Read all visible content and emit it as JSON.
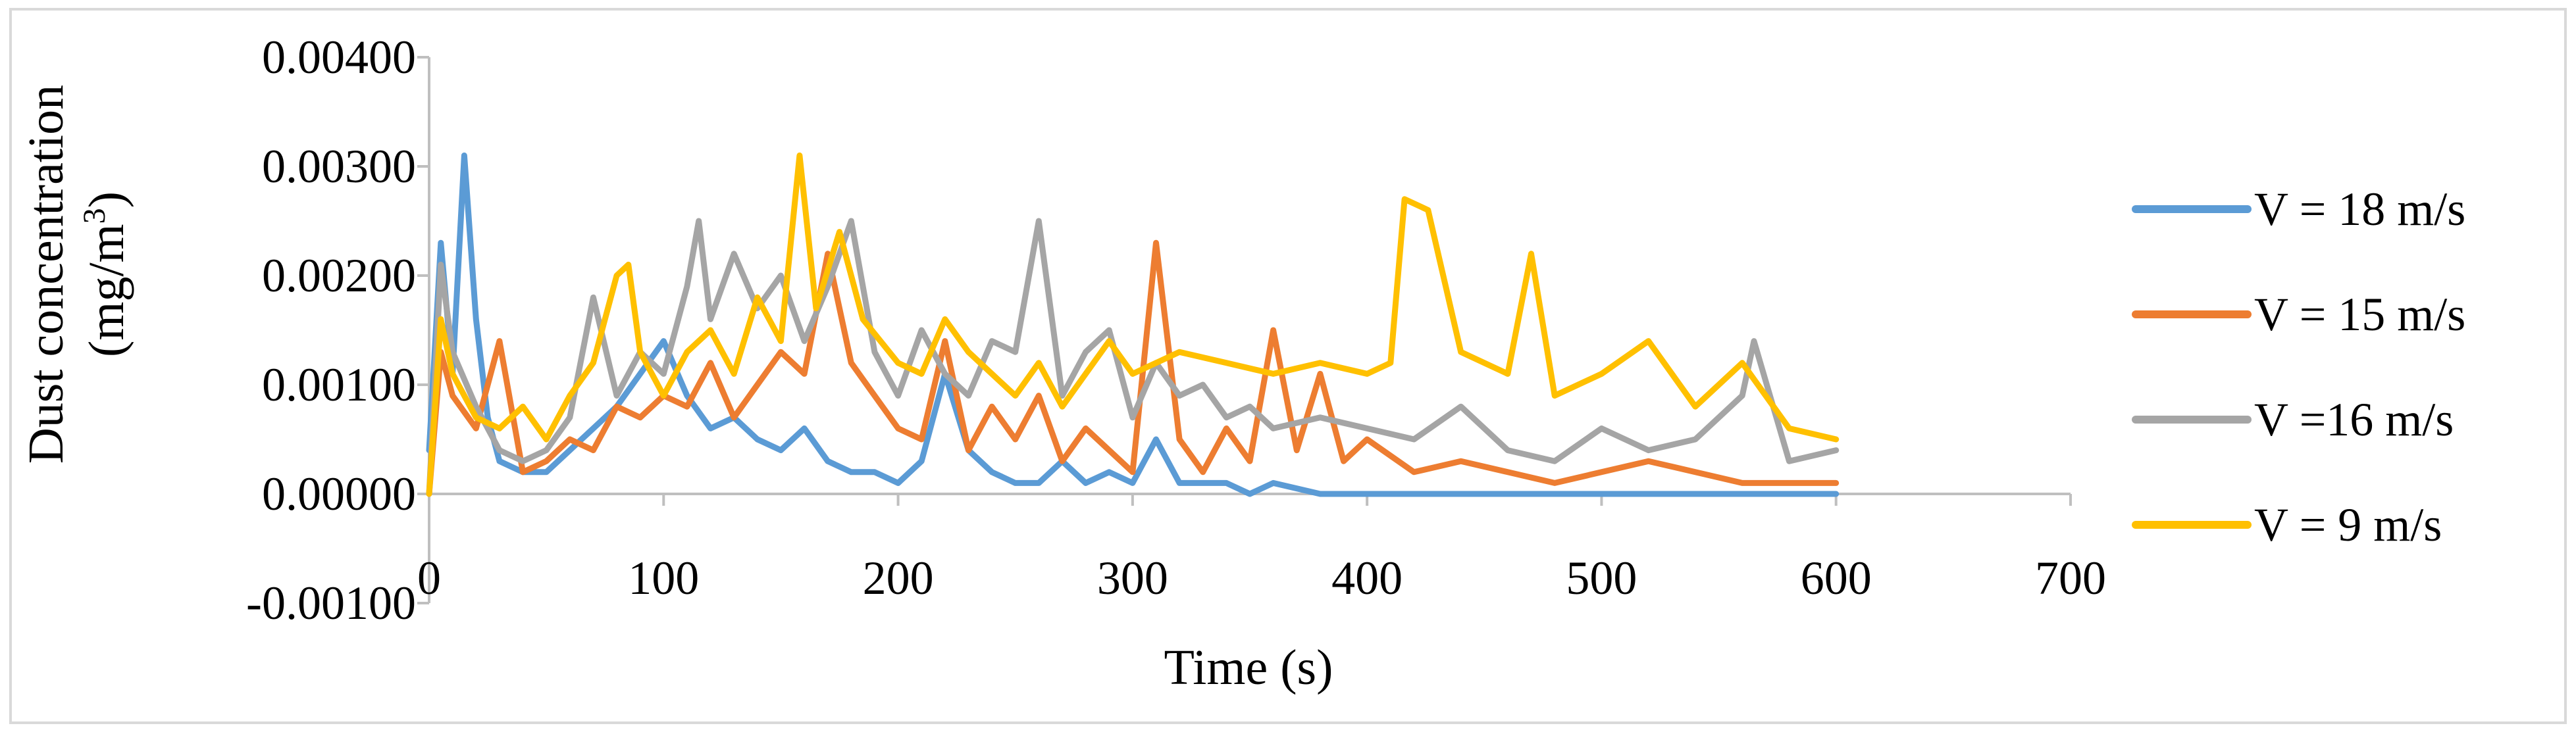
{
  "chart_data": {
    "type": "line",
    "title": "",
    "xlabel": "Time (s)",
    "ylabel": {
      "line1": "Dust concentration",
      "line2_prefix": "(mg/m",
      "line2_superscript": "3",
      "line2_suffix": ")"
    },
    "xlim": [
      0,
      700
    ],
    "ylim": [
      -0.001,
      0.004
    ],
    "x_ticks": [
      0,
      100,
      200,
      300,
      400,
      500,
      600,
      700
    ],
    "x_tick_labels": [
      "0",
      "100",
      "200",
      "300",
      "400",
      "500",
      "600",
      "700"
    ],
    "y_ticks": [
      -0.001,
      0,
      0.001,
      0.002,
      0.003,
      0.004
    ],
    "y_tick_labels": [
      "-0.00100",
      "0.00000",
      "0.00100",
      "0.00200",
      "0.00300",
      "0.00400"
    ],
    "grid": false,
    "legend_position": "right",
    "series": [
      {
        "name": "V = 18 m/s",
        "color": "#5B9BD5",
        "x": [
          0,
          5,
          10,
          15,
          20,
          25,
          30,
          40,
          50,
          60,
          70,
          80,
          90,
          100,
          110,
          120,
          130,
          140,
          150,
          160,
          170,
          180,
          190,
          200,
          210,
          220,
          230,
          240,
          250,
          260,
          270,
          280,
          290,
          300,
          310,
          320,
          330,
          340,
          350,
          360,
          380,
          400,
          420,
          440,
          460,
          480,
          500,
          520,
          540,
          560,
          580,
          600
        ],
        "y": [
          0.0004,
          0.0023,
          0.0011,
          0.0031,
          0.0016,
          0.0007,
          0.0003,
          0.0002,
          0.0002,
          0.0004,
          0.0006,
          0.0008,
          0.0011,
          0.0014,
          0.0009,
          0.0006,
          0.0007,
          0.0005,
          0.0004,
          0.0006,
          0.0003,
          0.0002,
          0.0002,
          0.0001,
          0.0003,
          0.0011,
          0.0004,
          0.0002,
          0.0001,
          0.0001,
          0.0003,
          0.0001,
          0.0002,
          0.0001,
          0.0005,
          0.0001,
          0.0001,
          0.0001,
          0.0,
          0.0001,
          0.0,
          0.0,
          0.0,
          0.0,
          0.0,
          0.0,
          0.0,
          0.0,
          0.0,
          0.0,
          0.0,
          0.0
        ]
      },
      {
        "name": "V = 15 m/s",
        "color": "#ED7D31",
        "x": [
          0,
          5,
          10,
          20,
          30,
          40,
          50,
          60,
          70,
          80,
          90,
          100,
          110,
          120,
          130,
          140,
          150,
          160,
          170,
          180,
          190,
          200,
          210,
          220,
          230,
          240,
          250,
          260,
          270,
          280,
          290,
          300,
          310,
          320,
          330,
          340,
          350,
          360,
          370,
          380,
          390,
          400,
          420,
          440,
          460,
          480,
          500,
          520,
          540,
          560,
          580,
          600
        ],
        "y": [
          0.0,
          0.0013,
          0.0009,
          0.0006,
          0.0014,
          0.0002,
          0.0003,
          0.0005,
          0.0004,
          0.0008,
          0.0007,
          0.0009,
          0.0008,
          0.0012,
          0.0007,
          0.001,
          0.0013,
          0.0011,
          0.0022,
          0.0012,
          0.0009,
          0.0006,
          0.0005,
          0.0014,
          0.0004,
          0.0008,
          0.0005,
          0.0009,
          0.0003,
          0.0006,
          0.0004,
          0.0002,
          0.0023,
          0.0005,
          0.0002,
          0.0006,
          0.0003,
          0.0015,
          0.0004,
          0.0011,
          0.0003,
          0.0005,
          0.0002,
          0.0003,
          0.0002,
          0.0001,
          0.0002,
          0.0003,
          0.0002,
          0.0001,
          0.0001,
          0.0001
        ]
      },
      {
        "name": "V =16 m/s",
        "color": "#A5A5A5",
        "x": [
          0,
          5,
          10,
          20,
          30,
          40,
          50,
          60,
          70,
          80,
          90,
          100,
          110,
          115,
          120,
          130,
          140,
          150,
          160,
          170,
          180,
          190,
          200,
          210,
          220,
          230,
          240,
          250,
          260,
          270,
          280,
          290,
          300,
          310,
          320,
          330,
          340,
          350,
          360,
          380,
          400,
          420,
          440,
          460,
          480,
          500,
          520,
          540,
          560,
          565,
          580,
          600
        ],
        "y": [
          0.0,
          0.0021,
          0.0013,
          0.0008,
          0.0004,
          0.0003,
          0.0004,
          0.0007,
          0.0018,
          0.0009,
          0.0013,
          0.0011,
          0.0019,
          0.0025,
          0.0016,
          0.0022,
          0.0017,
          0.002,
          0.0014,
          0.0019,
          0.0025,
          0.0013,
          0.0009,
          0.0015,
          0.0011,
          0.0009,
          0.0014,
          0.0013,
          0.0025,
          0.0009,
          0.0013,
          0.0015,
          0.0007,
          0.0012,
          0.0009,
          0.001,
          0.0007,
          0.0008,
          0.0006,
          0.0007,
          0.0006,
          0.0005,
          0.0008,
          0.0004,
          0.0003,
          0.0006,
          0.0004,
          0.0005,
          0.0009,
          0.0014,
          0.0003,
          0.0004
        ]
      },
      {
        "name": "V = 9 m/s",
        "color": "#FFC000",
        "x": [
          0,
          5,
          10,
          20,
          30,
          40,
          50,
          60,
          70,
          80,
          85,
          90,
          100,
          110,
          120,
          130,
          140,
          150,
          158,
          165,
          175,
          185,
          200,
          210,
          220,
          230,
          240,
          250,
          260,
          270,
          280,
          290,
          300,
          320,
          340,
          360,
          380,
          400,
          410,
          416,
          426,
          440,
          450,
          460,
          470,
          480,
          500,
          520,
          540,
          560,
          580,
          600
        ],
        "y": [
          0.0,
          0.0016,
          0.0011,
          0.0007,
          0.0006,
          0.0008,
          0.0005,
          0.0009,
          0.0012,
          0.002,
          0.0021,
          0.0013,
          0.0009,
          0.0013,
          0.0015,
          0.0011,
          0.0018,
          0.0014,
          0.0031,
          0.0017,
          0.0024,
          0.0016,
          0.0012,
          0.0011,
          0.0016,
          0.0013,
          0.0011,
          0.0009,
          0.0012,
          0.0008,
          0.0011,
          0.0014,
          0.0011,
          0.0013,
          0.0012,
          0.0011,
          0.0012,
          0.0011,
          0.0012,
          0.0027,
          0.0026,
          0.0013,
          0.0012,
          0.0011,
          0.0022,
          0.0009,
          0.0011,
          0.0014,
          0.0008,
          0.0012,
          0.0006,
          0.0005
        ]
      }
    ]
  }
}
